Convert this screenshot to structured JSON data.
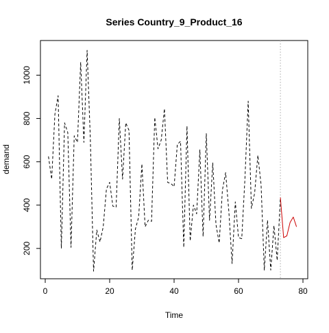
{
  "chart_data": {
    "type": "line",
    "title": "Series  Country_9_Product_16",
    "xlabel": "Time",
    "ylabel": "demand",
    "xlim": [
      0,
      80
    ],
    "ylim": [
      60,
      1160
    ],
    "x_ticks": [
      0,
      20,
      40,
      60,
      80
    ],
    "y_ticks": [
      200,
      400,
      600,
      800,
      1000
    ],
    "x_tick_labels": [
      "0",
      "20",
      "40",
      "60",
      "80"
    ],
    "y_tick_labels": [
      "200",
      "400",
      "600",
      "800",
      "1000"
    ],
    "grid": false,
    "legend": "none",
    "forecast_start": 73,
    "colors": {
      "history": "#000000",
      "forecast": "#cc0000",
      "divider": "#bebebe"
    },
    "series": [
      {
        "style": "dashed",
        "color": "#000000",
        "x": [
          1,
          2,
          3,
          4,
          5,
          6,
          7,
          8,
          9,
          10,
          11,
          12,
          13,
          14,
          15,
          16,
          17,
          18,
          19,
          20,
          21,
          22,
          23,
          24,
          25,
          26,
          27,
          28,
          29,
          30,
          31,
          32,
          33,
          34,
          35,
          36,
          37,
          38,
          39,
          40,
          41,
          42,
          43,
          44,
          45,
          46,
          47,
          48,
          49,
          50,
          51,
          52,
          53,
          54,
          55,
          56,
          57,
          58,
          59,
          60,
          61,
          62,
          63,
          64,
          65,
          66,
          67,
          68,
          69,
          70,
          71,
          72,
          73
        ],
        "values": [
          625,
          520,
          820,
          905,
          200,
          780,
          735,
          205,
          720,
          690,
          1060,
          690,
          1115,
          705,
          95,
          285,
          230,
          300,
          475,
          505,
          395,
          390,
          800,
          520,
          780,
          745,
          100,
          290,
          345,
          590,
          300,
          330,
          325,
          805,
          660,
          700,
          845,
          505,
          500,
          485,
          680,
          695,
          205,
          765,
          235,
          400,
          360,
          655,
          255,
          730,
          330,
          595,
          310,
          225,
          470,
          550,
          370,
          130,
          415,
          250,
          245,
          525,
          880,
          385,
          455,
          630,
          495,
          100,
          330,
          100,
          305,
          145,
          435
        ]
      },
      {
        "style": "solid",
        "color": "#cc0000",
        "x": [
          73,
          74,
          75,
          76,
          77,
          78
        ],
        "values": [
          435,
          250,
          258,
          320,
          345,
          300
        ]
      }
    ]
  }
}
